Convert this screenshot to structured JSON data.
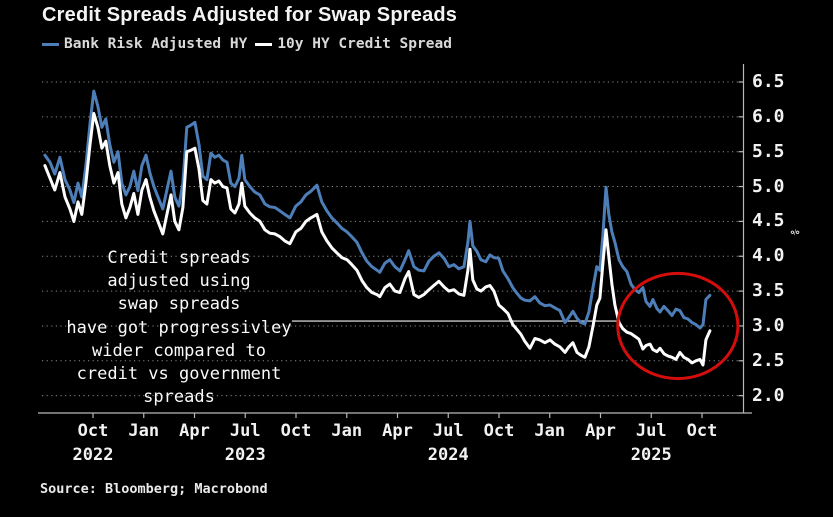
{
  "title": "Credit Spreads Adjusted for Swap Spreads",
  "source": "Source: Bloomberg; Macrobond",
  "colors": {
    "background": "#000000",
    "blue_series": "#4d7eb8",
    "white_series": "#fdfdfd",
    "grid": "#8a8a8a",
    "axis": "#b8b8b8",
    "text": "#f2f2f2",
    "circle_red": "#d40d0d",
    "callout_line": "#c8c8c8"
  },
  "legend": [
    {
      "label": "Bank Risk Adjusted HY",
      "color": "#4d7eb8"
    },
    {
      "label": "10y HY Credit Spread",
      "color": "#fdfdfd"
    }
  ],
  "annotation": {
    "lines": [
      "Credit spreads",
      "adjusted using",
      "swap spreads",
      "have got progressivley",
      "wider compared to",
      "credit vs government",
      "spreads"
    ],
    "callout": {
      "y_value": 3.07,
      "x_from": 2023.73,
      "x_to": 2025.33
    }
  },
  "y_axis": {
    "unit": "%",
    "ticks": [
      6.5,
      6.0,
      5.5,
      5.0,
      4.5,
      4.0,
      3.5,
      3.0,
      2.5,
      2.0
    ],
    "range": [
      1.74,
      6.77
    ]
  },
  "x_axis": {
    "range": [
      2022.513,
      2025.962
    ],
    "ticks": [
      {
        "pos": 2022.75,
        "label": "Oct"
      },
      {
        "pos": 2023.0,
        "label": "Jan"
      },
      {
        "pos": 2023.25,
        "label": "Apr"
      },
      {
        "pos": 2023.5,
        "label": "Jul"
      },
      {
        "pos": 2023.75,
        "label": "Oct"
      },
      {
        "pos": 2024.0,
        "label": "Jan"
      },
      {
        "pos": 2024.25,
        "label": "Apr"
      },
      {
        "pos": 2024.5,
        "label": "Jul"
      },
      {
        "pos": 2024.75,
        "label": "Oct"
      },
      {
        "pos": 2025.0,
        "label": "Jan"
      },
      {
        "pos": 2025.25,
        "label": "Apr"
      },
      {
        "pos": 2025.5,
        "label": "Jul"
      },
      {
        "pos": 2025.75,
        "label": "Oct"
      }
    ],
    "years": [
      {
        "pos": 2022.75,
        "label": "2022"
      },
      {
        "pos": 2023.5,
        "label": "2023"
      },
      {
        "pos": 2024.5,
        "label": "2024"
      },
      {
        "pos": 2025.5,
        "label": "2025"
      }
    ]
  },
  "chart_data": {
    "type": "line",
    "title": "Credit Spreads Adjusted for Swap Spreads",
    "ylabel": "%",
    "ylim": [
      1.74,
      6.77
    ],
    "xlim": [
      2022.513,
      2025.962
    ],
    "grid": "horizontal-dotted",
    "legend_position": "top-left",
    "x": [
      2022.513,
      2022.538,
      2022.562,
      2022.587,
      2022.612,
      2022.636,
      2022.656,
      2022.676,
      2022.695,
      2022.715,
      2022.735,
      2022.754,
      2022.774,
      2022.794,
      2022.813,
      2022.833,
      2022.853,
      2022.873,
      2022.892,
      2022.912,
      2022.932,
      2022.951,
      2022.971,
      2022.991,
      2023.011,
      2023.03,
      2023.05,
      2023.07,
      2023.094,
      2023.114,
      2023.134,
      2023.153,
      2023.173,
      2023.193,
      2023.212,
      2023.232,
      2023.252,
      2023.272,
      2023.291,
      2023.311,
      2023.331,
      2023.35,
      2023.37,
      2023.39,
      2023.41,
      2023.429,
      2023.449,
      2023.469,
      2023.483,
      2023.498,
      2023.523,
      2023.547,
      2023.572,
      2023.597,
      2023.621,
      2023.646,
      2023.671,
      2023.695,
      2023.72,
      2023.749,
      2023.774,
      2023.799,
      2023.823,
      2023.853,
      2023.877,
      2023.902,
      2023.927,
      2023.951,
      2023.976,
      2024.001,
      2024.025,
      2024.05,
      2024.075,
      2024.099,
      2024.124,
      2024.149,
      2024.163,
      2024.188,
      2024.212,
      2024.237,
      2024.262,
      2024.287,
      2024.305,
      2024.331,
      2024.355,
      2024.38,
      2024.405,
      2024.429,
      2024.454,
      2024.479,
      2024.503,
      2024.528,
      2024.552,
      2024.577,
      2024.597,
      2024.607,
      2024.621,
      2024.641,
      2024.661,
      2024.685,
      2024.705,
      2024.725,
      2024.749,
      2024.769,
      2024.794,
      2024.818,
      2024.838,
      2024.858,
      2024.877,
      2024.902,
      2024.927,
      2024.951,
      2024.976,
      2025.001,
      2025.025,
      2025.05,
      2025.075,
      2025.094,
      2025.114,
      2025.134,
      2025.153,
      2025.173,
      2025.193,
      2025.213,
      2025.232,
      2025.247,
      2025.262,
      2025.277,
      2025.291,
      2025.306,
      2025.321,
      2025.341,
      2025.36,
      2025.38,
      2025.4,
      2025.42,
      2025.439,
      2025.459,
      2025.474,
      2025.494,
      2025.508,
      2025.528,
      2025.543,
      2025.563,
      2025.582,
      2025.602,
      2025.622,
      2025.641,
      2025.661,
      2025.681,
      2025.7,
      2025.72,
      2025.74,
      2025.755,
      2025.769,
      2025.789
    ],
    "series": [
      {
        "name": "Bank Risk Adjusted HY",
        "color": "#4d7eb8",
        "values": [
          5.45,
          5.35,
          5.18,
          5.42,
          5.1,
          4.95,
          4.77,
          5.05,
          4.85,
          5.3,
          5.9,
          6.37,
          6.15,
          5.85,
          5.97,
          5.6,
          5.35,
          5.5,
          5.05,
          4.88,
          5.0,
          5.22,
          4.94,
          5.3,
          5.45,
          5.2,
          5.0,
          4.85,
          4.68,
          4.95,
          5.22,
          4.85,
          4.72,
          5.05,
          5.85,
          5.88,
          5.92,
          5.6,
          5.15,
          5.1,
          5.48,
          5.42,
          5.45,
          5.38,
          5.35,
          5.05,
          5.0,
          5.12,
          5.45,
          5.1,
          5.0,
          4.92,
          4.88,
          4.75,
          4.71,
          4.7,
          4.65,
          4.6,
          4.55,
          4.72,
          4.78,
          4.88,
          4.93,
          5.02,
          4.78,
          4.65,
          4.55,
          4.48,
          4.4,
          4.35,
          4.28,
          4.2,
          4.05,
          3.93,
          3.85,
          3.8,
          3.77,
          3.9,
          3.95,
          3.85,
          3.79,
          3.95,
          4.08,
          3.85,
          3.8,
          3.79,
          3.93,
          4.0,
          4.05,
          3.97,
          3.85,
          3.88,
          3.82,
          3.85,
          4.2,
          4.5,
          4.15,
          4.07,
          3.95,
          3.92,
          4.02,
          3.98,
          3.97,
          3.79,
          3.68,
          3.55,
          3.47,
          3.4,
          3.37,
          3.36,
          3.42,
          3.33,
          3.29,
          3.3,
          3.26,
          3.22,
          3.05,
          3.12,
          3.21,
          3.11,
          3.05,
          3.03,
          3.2,
          3.55,
          3.85,
          3.8,
          4.3,
          4.99,
          4.6,
          4.35,
          4.2,
          3.95,
          3.85,
          3.78,
          3.6,
          3.52,
          3.48,
          3.55,
          3.35,
          3.28,
          3.38,
          3.25,
          3.2,
          3.28,
          3.22,
          3.15,
          3.24,
          3.22,
          3.12,
          3.1,
          3.05,
          3.02,
          2.97,
          3.02,
          3.38,
          3.44
        ]
      },
      {
        "name": "10y HY Credit Spread",
        "color": "#fdfdfd",
        "values": [
          5.3,
          5.12,
          4.95,
          5.2,
          4.85,
          4.68,
          4.5,
          4.78,
          4.6,
          5.05,
          5.6,
          6.05,
          5.85,
          5.55,
          5.65,
          5.3,
          5.05,
          5.2,
          4.75,
          4.55,
          4.7,
          4.9,
          4.6,
          4.95,
          5.1,
          4.85,
          4.65,
          4.5,
          4.32,
          4.6,
          4.88,
          4.5,
          4.38,
          4.7,
          5.5,
          5.52,
          5.55,
          5.25,
          4.8,
          4.75,
          5.1,
          5.05,
          5.08,
          5.0,
          4.98,
          4.68,
          4.62,
          4.75,
          5.05,
          4.72,
          4.62,
          4.55,
          4.5,
          4.38,
          4.33,
          4.32,
          4.28,
          4.22,
          4.18,
          4.35,
          4.4,
          4.5,
          4.55,
          4.6,
          4.35,
          4.22,
          4.12,
          4.05,
          3.98,
          3.95,
          3.88,
          3.8,
          3.65,
          3.55,
          3.48,
          3.45,
          3.42,
          3.55,
          3.6,
          3.5,
          3.48,
          3.68,
          3.78,
          3.45,
          3.41,
          3.45,
          3.52,
          3.58,
          3.64,
          3.56,
          3.5,
          3.52,
          3.46,
          3.44,
          3.8,
          4.1,
          3.66,
          3.53,
          3.5,
          3.56,
          3.58,
          3.5,
          3.3,
          3.25,
          3.18,
          3.02,
          2.95,
          2.88,
          2.78,
          2.68,
          2.82,
          2.8,
          2.76,
          2.8,
          2.74,
          2.7,
          2.62,
          2.7,
          2.76,
          2.62,
          2.58,
          2.55,
          2.7,
          3.0,
          3.3,
          3.4,
          3.9,
          4.38,
          4.0,
          3.6,
          3.3,
          3.05,
          2.96,
          2.91,
          2.89,
          2.85,
          2.81,
          2.67,
          2.72,
          2.74,
          2.66,
          2.63,
          2.68,
          2.6,
          2.57,
          2.55,
          2.52,
          2.62,
          2.55,
          2.52,
          2.47,
          2.5,
          2.52,
          2.44,
          2.8,
          2.93
        ]
      }
    ],
    "highlight_circle": {
      "x": 2025.631,
      "y": 3.0,
      "rx_years": 0.296,
      "ry_units": 0.755
    }
  }
}
